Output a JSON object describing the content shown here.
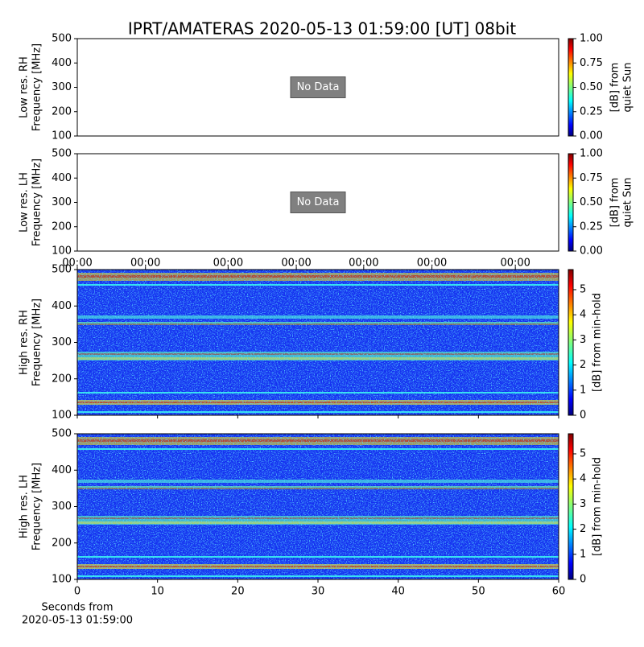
{
  "chart_data": [
    {
      "type": "spectrogram",
      "title": "IPRT/AMATERAS 2020-05-13 01:59:00 [UT]   08bit",
      "ylabel": [
        "Low res. RH",
        "Frequency [MHz]"
      ],
      "ylim": [
        100,
        500
      ],
      "yticks": [
        100,
        200,
        300,
        400,
        500
      ],
      "no_data_label": "No Data",
      "colorbar": {
        "label": [
          "[dB] from",
          "quiet Sun"
        ],
        "lim": [
          0,
          1
        ],
        "ticks": [
          {
            "value": 0,
            "label": "0.00"
          },
          {
            "value": 0.25,
            "label": "0.25"
          },
          {
            "value": 0.5,
            "label": "0.50"
          },
          {
            "value": 0.75,
            "label": "0.75"
          },
          {
            "value": 1,
            "label": "1.00"
          }
        ]
      }
    },
    {
      "type": "spectrogram",
      "ylabel": [
        "Low res. LH",
        "Frequency [MHz]"
      ],
      "ylim": [
        100,
        500
      ],
      "yticks": [
        100,
        200,
        300,
        400,
        500
      ],
      "no_data_label": "No Data",
      "colorbar": {
        "label": [
          "[dB] from",
          "quiet Sun"
        ],
        "lim": [
          0,
          1
        ],
        "ticks": [
          {
            "value": 0,
            "label": "0.00"
          },
          {
            "value": 0.25,
            "label": "0.25"
          },
          {
            "value": 0.5,
            "label": "0.50"
          },
          {
            "value": 0.75,
            "label": "0.75"
          },
          {
            "value": 1,
            "label": "1.00"
          }
        ]
      }
    },
    {
      "type": "spectrogram",
      "ylabel": [
        "High res. RH",
        "Frequency [MHz]"
      ],
      "ylim": [
        100,
        500
      ],
      "yticks": [
        100,
        200,
        300,
        400,
        500
      ],
      "xlim": [
        0,
        60
      ],
      "xticks": [
        0,
        10,
        20,
        30,
        40,
        50,
        60
      ],
      "show_xtick_labels": false,
      "xticks_top": [
        {
          "value": 0,
          "label": "00:00"
        },
        {
          "value": 8.5,
          "label": "00:00"
        },
        {
          "value": 18.8,
          "label": "00:00"
        },
        {
          "value": 27.3,
          "label": "00:00"
        },
        {
          "value": 35.7,
          "label": "00:00"
        },
        {
          "value": 44.2,
          "label": "00:00"
        },
        {
          "value": 54.6,
          "label": "00:00"
        }
      ],
      "colorbar": {
        "label": [
          "[dB] from min-hold"
        ],
        "lim": [
          0,
          5.8
        ],
        "ticks": [
          0,
          1,
          2,
          3,
          4,
          5
        ]
      }
    },
    {
      "type": "spectrogram",
      "ylabel": [
        "High res. LH",
        "Frequency [MHz]"
      ],
      "ylim": [
        100,
        500
      ],
      "yticks": [
        100,
        200,
        300,
        400,
        500
      ],
      "xlim": [
        0,
        60
      ],
      "xticks": [
        0,
        10,
        20,
        30,
        40,
        50,
        60
      ],
      "show_xtick_labels": true,
      "xlabel": [
        "Seconds from",
        "2020-05-13 01:59:00"
      ],
      "colorbar": {
        "label": [
          "[dB] from min-hold"
        ],
        "lim": [
          0,
          5.8
        ],
        "ticks": [
          0,
          1,
          2,
          3,
          4,
          5
        ]
      }
    }
  ]
}
